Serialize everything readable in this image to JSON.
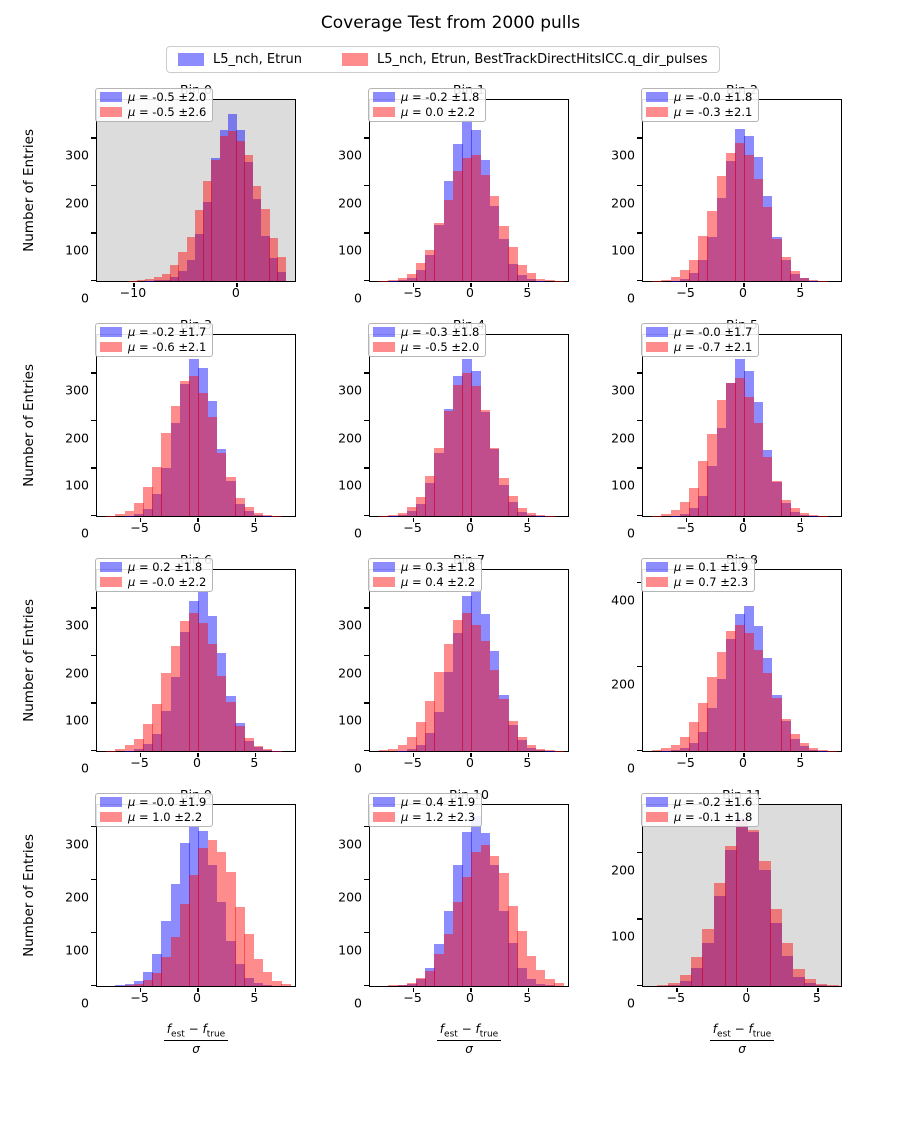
{
  "title": "Coverage Test from 2000 pulls",
  "ylabel": "Number of Entries",
  "xlabel": {
    "numerator": [
      {
        "base": "f",
        "sub": "est"
      },
      {
        "op": " − "
      },
      {
        "base": "f",
        "sub": "true"
      }
    ],
    "denominator": "σ"
  },
  "stats_prefix": {
    "mu_symbol": "μ",
    "equals": " = "
  },
  "colors": {
    "blue_fill": "rgba(0,0,255,0.45)",
    "red_fill": "rgba(255,0,0,0.45)",
    "shaded_bg": "#dcdcdc",
    "plain_bg": "#ffffff",
    "spine": "#000000"
  },
  "legend": {
    "items": [
      {
        "label": "L5_nch, Etrun",
        "series": "blue"
      },
      {
        "label": "L5_nch, Etrun, BestTrackDirectHitsICC.q_dir_pulses",
        "series": "red"
      }
    ]
  },
  "chart_data": {
    "type": "bar",
    "note": "grid of 12 overlaid histograms (2000 pulls each), blue = L5_nch, Etrun; red = L5_nch, Etrun, BestTrackDirectHitsICC.q_dir_pulses",
    "subplots": [
      {
        "title": "Bin 0",
        "stats": {
          "blue": "-0.5 ±2.0",
          "red": "-0.5 ±2.6"
        },
        "shaded": true,
        "xlim": [
          -13.6,
          5.6
        ],
        "ylim": [
          0,
          380
        ],
        "xticks": [
          -10,
          0
        ],
        "yticks": [
          0,
          100,
          200,
          300
        ],
        "bins_start": -12.1,
        "bin_width": 0.8,
        "blue": [
          0,
          0,
          0,
          0,
          1,
          2,
          3,
          8,
          22,
          45,
          99,
          165,
          258,
          318,
          350,
          316,
          250,
          173,
          94,
          49,
          18
        ],
        "red": [
          0,
          0,
          1,
          2,
          4,
          8,
          14,
          33,
          60,
          92,
          150,
          210,
          255,
          305,
          315,
          295,
          265,
          200,
          152,
          90,
          50
        ]
      },
      {
        "title": "Bin 1",
        "stats": {
          "blue": "-0.2 ±1.8",
          "red": "0.0 ±2.2"
        },
        "shaded": false,
        "xlim": [
          -8.8,
          8.4
        ],
        "ylim": [
          0,
          380
        ],
        "xticks": [
          -5,
          0,
          5
        ],
        "yticks": [
          0,
          100,
          200,
          300
        ],
        "bins_start": -8.0,
        "bin_width": 0.8,
        "blue": [
          0,
          1,
          3,
          7,
          24,
          55,
          118,
          210,
          288,
          338,
          318,
          255,
          158,
          88,
          35,
          12,
          4,
          1,
          0,
          0
        ],
        "red": [
          1,
          3,
          6,
          15,
          38,
          66,
          122,
          170,
          232,
          258,
          265,
          222,
          178,
          115,
          72,
          34,
          17,
          5,
          2,
          1
        ]
      },
      {
        "title": "Bin 2",
        "stats": {
          "blue": "-0.0 ±1.8",
          "red": "-0.3 ±2.1"
        },
        "shaded": false,
        "xlim": [
          -8.8,
          8.4
        ],
        "ylim": [
          0,
          380
        ],
        "xticks": [
          -5,
          0,
          5
        ],
        "yticks": [
          0,
          100,
          200,
          300
        ],
        "bins_start": -8.0,
        "bin_width": 0.8,
        "blue": [
          0,
          0,
          1,
          5,
          17,
          45,
          92,
          175,
          252,
          320,
          305,
          260,
          178,
          92,
          45,
          15,
          6,
          1,
          0,
          0
        ],
        "red": [
          1,
          2,
          9,
          23,
          44,
          95,
          148,
          220,
          268,
          290,
          265,
          215,
          155,
          88,
          50,
          20,
          7,
          3,
          1,
          0
        ]
      },
      {
        "title": "Bin 3",
        "stats": {
          "blue": "-0.2 ±1.7",
          "red": "-0.6 ±2.1"
        },
        "shaded": false,
        "xlim": [
          -8.8,
          8.4
        ],
        "ylim": [
          0,
          380
        ],
        "xticks": [
          -5,
          0,
          5
        ],
        "yticks": [
          0,
          100,
          200,
          300
        ],
        "bins_start": -8.0,
        "bin_width": 0.8,
        "blue": [
          0,
          0,
          1,
          5,
          15,
          47,
          100,
          195,
          278,
          330,
          310,
          242,
          140,
          73,
          25,
          10,
          3,
          1,
          0,
          0
        ],
        "red": [
          1,
          4,
          10,
          28,
          60,
          103,
          175,
          232,
          283,
          295,
          258,
          208,
          133,
          82,
          38,
          18,
          7,
          2,
          1,
          0
        ]
      },
      {
        "title": "Bin 4",
        "stats": {
          "blue": "-0.3 ±1.8",
          "red": "-0.5 ±2.0"
        },
        "shaded": false,
        "xlim": [
          -8.8,
          8.4
        ],
        "ylim": [
          0,
          380
        ],
        "xticks": [
          -5,
          0,
          5
        ],
        "yticks": [
          0,
          100,
          200,
          300
        ],
        "bins_start": -8.0,
        "bin_width": 0.8,
        "blue": [
          0,
          1,
          3,
          10,
          26,
          70,
          132,
          225,
          295,
          330,
          305,
          218,
          140,
          65,
          30,
          8,
          3,
          1,
          0,
          0
        ],
        "red": [
          1,
          2,
          7,
          18,
          40,
          85,
          142,
          220,
          275,
          300,
          272,
          222,
          142,
          80,
          43,
          16,
          6,
          2,
          1,
          0
        ]
      },
      {
        "title": "Bin 5",
        "stats": {
          "blue": "-0.0 ±1.7",
          "red": "-0.7 ±2.1"
        },
        "shaded": false,
        "xlim": [
          -8.8,
          8.4
        ],
        "ylim": [
          0,
          380
        ],
        "xticks": [
          -5,
          0,
          5
        ],
        "yticks": [
          0,
          100,
          200,
          300
        ],
        "bins_start": -8.0,
        "bin_width": 0.8,
        "blue": [
          0,
          0,
          1,
          4,
          17,
          43,
          105,
          185,
          280,
          330,
          305,
          240,
          138,
          72,
          28,
          9,
          3,
          1,
          0,
          0
        ],
        "red": [
          1,
          4,
          12,
          30,
          58,
          115,
          172,
          243,
          280,
          290,
          250,
          195,
          124,
          74,
          34,
          16,
          6,
          2,
          1,
          0
        ]
      },
      {
        "title": "Bin 6",
        "stats": {
          "blue": "0.2 ±1.8",
          "red": "-0.0 ±2.2"
        },
        "shaded": false,
        "xlim": [
          -8.8,
          8.4
        ],
        "ylim": [
          0,
          380
        ],
        "xticks": [
          -5,
          0,
          5
        ],
        "yticks": [
          0,
          100,
          200,
          300
        ],
        "bins_start": -8.0,
        "bin_width": 0.8,
        "blue": [
          0,
          0,
          1,
          4,
          14,
          35,
          85,
          155,
          250,
          315,
          335,
          283,
          205,
          115,
          58,
          20,
          8,
          2,
          1,
          0
        ],
        "red": [
          1,
          4,
          12,
          26,
          57,
          98,
          163,
          220,
          273,
          290,
          268,
          225,
          157,
          103,
          52,
          28,
          10,
          4,
          1,
          0
        ]
      },
      {
        "title": "Bin 7",
        "stats": {
          "blue": "0.3 ±1.8",
          "red": "0.4 ±2.2"
        },
        "shaded": false,
        "xlim": [
          -8.8,
          8.4
        ],
        "ylim": [
          0,
          380
        ],
        "xticks": [
          -5,
          0,
          5
        ],
        "yticks": [
          0,
          100,
          200,
          300
        ],
        "bins_start": -8.0,
        "bin_width": 0.8,
        "blue": [
          0,
          0,
          1,
          5,
          13,
          38,
          82,
          165,
          248,
          325,
          340,
          288,
          210,
          118,
          55,
          23,
          7,
          2,
          1,
          0
        ],
        "red": [
          2,
          5,
          13,
          30,
          60,
          105,
          165,
          225,
          275,
          290,
          265,
          230,
          170,
          110,
          62,
          30,
          13,
          5,
          2,
          1
        ]
      },
      {
        "title": "Bin 8",
        "stats": {
          "blue": "0.1 ±1.9",
          "red": "0.7 ±2.3"
        },
        "shaded": false,
        "xlim": [
          -8.8,
          8.4
        ],
        "ylim": [
          0,
          430
        ],
        "xticks": [
          -5,
          0,
          5
        ],
        "yticks": [
          0,
          200,
          400
        ],
        "bins_start": -8.0,
        "bin_width": 0.8,
        "blue": [
          0,
          1,
          2,
          6,
          19,
          45,
          102,
          172,
          265,
          325,
          345,
          296,
          222,
          132,
          72,
          28,
          12,
          3,
          1,
          0
        ],
        "red": [
          2,
          6,
          15,
          34,
          68,
          115,
          175,
          235,
          285,
          300,
          280,
          240,
          185,
          125,
          75,
          40,
          18,
          7,
          2,
          1
        ]
      },
      {
        "title": "Bin 9",
        "stats": {
          "blue": "-0.0 ±1.9",
          "red": "1.0 ±2.2"
        },
        "shaded": false,
        "xlim": [
          -8.8,
          8.4
        ],
        "ylim": [
          0,
          340
        ],
        "xticks": [
          -5,
          0,
          5
        ],
        "yticks": [
          0,
          100,
          200,
          300
        ],
        "bins_start": -8.0,
        "bin_width": 0.8,
        "blue": [
          0,
          1,
          3,
          10,
          27,
          60,
          122,
          192,
          268,
          300,
          292,
          228,
          158,
          85,
          42,
          15,
          6,
          2,
          0,
          0
        ],
        "red": [
          0,
          0,
          1,
          4,
          12,
          24,
          55,
          92,
          155,
          208,
          260,
          275,
          252,
          215,
          148,
          98,
          50,
          26,
          10,
          4
        ]
      },
      {
        "title": "Bin 10",
        "stats": {
          "blue": "0.4 ±1.9",
          "red": "1.2 ±2.3"
        },
        "shaded": false,
        "xlim": [
          -8.8,
          8.4
        ],
        "ylim": [
          0,
          340
        ],
        "xticks": [
          -5,
          0,
          5
        ],
        "yticks": [
          0,
          100,
          200,
          300
        ],
        "bins_start": -8.0,
        "bin_width": 0.8,
        "blue": [
          0,
          0,
          1,
          4,
          14,
          34,
          79,
          140,
          228,
          290,
          320,
          288,
          228,
          140,
          80,
          33,
          14,
          4,
          1,
          0
        ],
        "red": [
          0,
          1,
          2,
          6,
          15,
          28,
          61,
          98,
          157,
          205,
          252,
          265,
          245,
          212,
          150,
          103,
          57,
          31,
          13,
          6
        ]
      },
      {
        "title": "Bin 11",
        "stats": {
          "blue": "-0.2 ±1.6",
          "red": "-0.1 ±1.8"
        },
        "shaded": true,
        "xlim": [
          -7.4,
          6.6
        ],
        "ylim": [
          0,
          272
        ],
        "xticks": [
          -5,
          0,
          5
        ],
        "yticks": [
          0,
          100,
          200
        ],
        "bins_start": -6.4,
        "bin_width": 0.8,
        "blue": [
          0,
          2,
          8,
          27,
          65,
          136,
          204,
          252,
          232,
          175,
          95,
          45,
          14,
          5,
          1,
          0
        ],
        "red": [
          1,
          5,
          16,
          44,
          85,
          155,
          210,
          250,
          235,
          188,
          116,
          64,
          26,
          11,
          3,
          1
        ]
      }
    ]
  }
}
